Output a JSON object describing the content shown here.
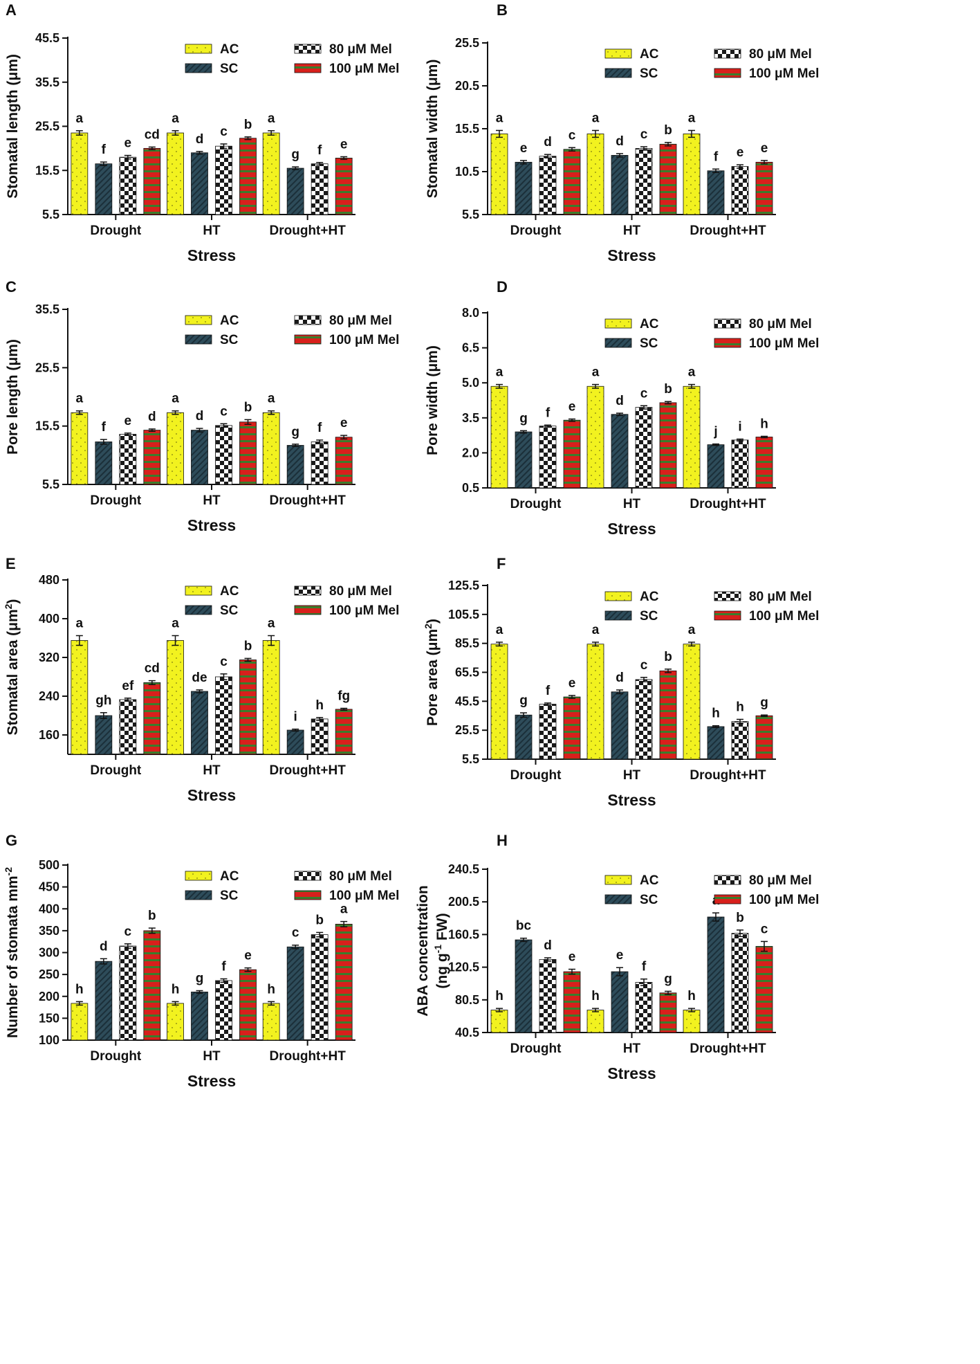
{
  "legend_labels": [
    "AC",
    "SC",
    "80 μM Mel",
    "100 μM Mel"
  ],
  "colors": {
    "ac": "#f2f21f",
    "sc": "#2e4c5a",
    "mel80_light": "#ffffff",
    "mel80_dark": "#1a1a1a",
    "mel100_red": "#d8201c",
    "mel100_green": "#3a7d2c"
  },
  "chart_data": [
    {
      "type": "bar",
      "panel": "A",
      "categories": [
        "Drought",
        "HT",
        "Drought+HT"
      ],
      "xlabel": "Stress",
      "ylabel": "Stomatal length (μm)",
      "ylim": [
        5.5,
        45.5
      ],
      "yticks": [
        5.5,
        15.5,
        25.5,
        35.5,
        45.5
      ],
      "series": [
        {
          "name": "AC",
          "values": [
            24.0,
            24.0,
            24.0
          ],
          "errors": [
            0.5,
            0.5,
            0.5
          ],
          "letters": [
            "a",
            "a",
            "a"
          ]
        },
        {
          "name": "SC",
          "values": [
            17.0,
            19.5,
            16.0
          ],
          "errors": [
            0.4,
            0.3,
            0.3
          ],
          "letters": [
            "f",
            "d",
            "g"
          ]
        },
        {
          "name": "80 μM Mel",
          "values": [
            18.5,
            21.0,
            17.0
          ],
          "errors": [
            0.4,
            0.5,
            0.3
          ],
          "letters": [
            "e",
            "c",
            "f"
          ]
        },
        {
          "name": "100 μM Mel",
          "values": [
            20.5,
            22.8,
            18.3
          ],
          "errors": [
            0.3,
            0.3,
            0.3
          ],
          "letters": [
            "cd",
            "b",
            "e"
          ]
        }
      ]
    },
    {
      "type": "bar",
      "panel": "B",
      "categories": [
        "Drought",
        "HT",
        "Drought+HT"
      ],
      "xlabel": "Stress",
      "ylabel": "Stomatal width (μm)",
      "ylim": [
        5.5,
        25.5
      ],
      "yticks": [
        5.5,
        10.5,
        15.5,
        20.5,
        25.5
      ],
      "series": [
        {
          "name": "AC",
          "values": [
            14.9,
            14.9,
            14.9
          ],
          "errors": [
            0.4,
            0.4,
            0.4
          ],
          "letters": [
            "a",
            "a",
            "a"
          ]
        },
        {
          "name": "SC",
          "values": [
            11.6,
            12.4,
            10.6
          ],
          "errors": [
            0.2,
            0.2,
            0.2
          ],
          "letters": [
            "e",
            "d",
            "f"
          ]
        },
        {
          "name": "80 μM Mel",
          "values": [
            12.3,
            13.2,
            11.1
          ],
          "errors": [
            0.2,
            0.2,
            0.2
          ],
          "letters": [
            "d",
            "c",
            "e"
          ]
        },
        {
          "name": "100 μM Mel",
          "values": [
            13.1,
            13.7,
            11.6
          ],
          "errors": [
            0.2,
            0.2,
            0.2
          ],
          "letters": [
            "c",
            "b",
            "e"
          ]
        }
      ]
    },
    {
      "type": "bar",
      "panel": "C",
      "categories": [
        "Drought",
        "HT",
        "Drought+HT"
      ],
      "xlabel": "Stress",
      "ylabel": "Pore length (μm)",
      "ylim": [
        5.5,
        35.5
      ],
      "yticks": [
        5.5,
        15.5,
        25.5,
        35.5
      ],
      "series": [
        {
          "name": "AC",
          "values": [
            17.8,
            17.8,
            17.8
          ],
          "errors": [
            0.3,
            0.3,
            0.3
          ],
          "letters": [
            "a",
            "a",
            "a"
          ]
        },
        {
          "name": "SC",
          "values": [
            12.8,
            14.8,
            12.2
          ],
          "errors": [
            0.4,
            0.3,
            0.2
          ],
          "letters": [
            "f",
            "d",
            "g"
          ]
        },
        {
          "name": "80 μM Mel",
          "values": [
            14.1,
            15.6,
            12.8
          ],
          "errors": [
            0.2,
            0.3,
            0.3
          ],
          "letters": [
            "e",
            "c",
            "f"
          ]
        },
        {
          "name": "100 μM Mel",
          "values": [
            14.8,
            16.2,
            13.6
          ],
          "errors": [
            0.2,
            0.4,
            0.3
          ],
          "letters": [
            "d",
            "b",
            "e"
          ]
        }
      ]
    },
    {
      "type": "bar",
      "panel": "D",
      "categories": [
        "Drought",
        "HT",
        "Drought+HT"
      ],
      "xlabel": "Stress",
      "ylabel": "Pore width (μm)",
      "ylim": [
        0.5,
        8.0
      ],
      "yticks": [
        0.5,
        2.0,
        3.5,
        5.0,
        6.5,
        8.0
      ],
      "series": [
        {
          "name": "AC",
          "values": [
            4.85,
            4.85,
            4.85
          ],
          "errors": [
            0.08,
            0.08,
            0.08
          ],
          "letters": [
            "a",
            "a",
            "a"
          ]
        },
        {
          "name": "SC",
          "values": [
            2.9,
            3.65,
            2.35
          ],
          "errors": [
            0.05,
            0.05,
            0.03
          ],
          "letters": [
            "g",
            "d",
            "j"
          ]
        },
        {
          "name": "80 μM Mel",
          "values": [
            3.15,
            3.95,
            2.55
          ],
          "errors": [
            0.04,
            0.07,
            0.04
          ],
          "letters": [
            "f",
            "c",
            "i"
          ]
        },
        {
          "name": "100 μM Mel",
          "values": [
            3.4,
            4.15,
            2.68
          ],
          "errors": [
            0.05,
            0.05,
            0.03
          ],
          "letters": [
            "e",
            "b",
            "h"
          ]
        }
      ]
    },
    {
      "type": "bar",
      "panel": "E",
      "categories": [
        "Drought",
        "HT",
        "Drought+HT"
      ],
      "xlabel": "Stress",
      "ylabel": "Stomatal area (μm2)",
      "ylim": [
        120,
        480
      ],
      "yticks": [
        160,
        240,
        320,
        400,
        480
      ],
      "series": [
        {
          "name": "AC",
          "values": [
            355,
            355,
            355
          ],
          "errors": [
            10,
            10,
            10
          ],
          "letters": [
            "a",
            "a",
            "a"
          ]
        },
        {
          "name": "SC",
          "values": [
            200,
            250,
            170
          ],
          "errors": [
            6,
            3,
            2
          ],
          "letters": [
            "gh",
            "de",
            "i"
          ]
        },
        {
          "name": "80 μM Mel",
          "values": [
            233,
            280,
            193
          ],
          "errors": [
            3,
            6,
            3
          ],
          "letters": [
            "ef",
            "c",
            "h"
          ]
        },
        {
          "name": "100 μM Mel",
          "values": [
            268,
            315,
            213
          ],
          "errors": [
            4,
            3,
            2
          ],
          "letters": [
            "cd",
            "b",
            "fg"
          ]
        }
      ]
    },
    {
      "type": "bar",
      "panel": "F",
      "categories": [
        "Drought",
        "HT",
        "Drought+HT"
      ],
      "xlabel": "Stress",
      "ylabel": "Pore area (μm2)",
      "ylim": [
        5.5,
        125.5
      ],
      "yticks": [
        5.5,
        25.5,
        45.5,
        65.5,
        85.5,
        105.5,
        125.5
      ],
      "series": [
        {
          "name": "AC",
          "values": [
            85.0,
            85.0,
            85.0
          ],
          "errors": [
            1.3,
            1.3,
            1.3
          ],
          "letters": [
            "a",
            "a",
            "a"
          ]
        },
        {
          "name": "SC",
          "values": [
            36.0,
            52.0,
            28.0
          ],
          "errors": [
            1.5,
            1.3,
            0.6
          ],
          "letters": [
            "g",
            "d",
            "h"
          ]
        },
        {
          "name": "80 μM Mel",
          "values": [
            43.5,
            60.5,
            31.5
          ],
          "errors": [
            0.8,
            1.5,
            1.5
          ],
          "letters": [
            "f",
            "c",
            "h"
          ]
        },
        {
          "name": "100 μM Mel",
          "values": [
            48.5,
            66.5,
            35.5
          ],
          "errors": [
            1.0,
            1.2,
            0.5
          ],
          "letters": [
            "e",
            "b",
            "g"
          ]
        }
      ]
    },
    {
      "type": "bar",
      "panel": "G",
      "categories": [
        "Drought",
        "HT",
        "Drought+HT"
      ],
      "xlabel": "Stress",
      "ylabel": "Number of stomata mm-2",
      "ylim": [
        100,
        500
      ],
      "yticks": [
        100,
        150,
        200,
        250,
        300,
        350,
        400,
        450,
        500
      ],
      "series": [
        {
          "name": "AC",
          "values": [
            184,
            184,
            184
          ],
          "errors": [
            4,
            4,
            4
          ],
          "letters": [
            "h",
            "h",
            "h"
          ]
        },
        {
          "name": "SC",
          "values": [
            280,
            210,
            313
          ],
          "errors": [
            6,
            3,
            4
          ],
          "letters": [
            "d",
            "g",
            "c"
          ]
        },
        {
          "name": "80 μM Mel",
          "values": [
            315,
            236,
            341
          ],
          "errors": [
            5,
            4,
            5
          ],
          "letters": [
            "c",
            "f",
            "b"
          ]
        },
        {
          "name": "100 μM Mel",
          "values": [
            350,
            261,
            365
          ],
          "errors": [
            6,
            4,
            6
          ],
          "letters": [
            "b",
            "e",
            "a"
          ]
        }
      ]
    },
    {
      "type": "bar",
      "panel": "H",
      "categories": [
        "Drought",
        "HT",
        "Drought+HT"
      ],
      "xlabel": "Stress",
      "ylabel": "ABA concentration (ng g-1 FW)",
      "ylim": [
        40.5,
        240.5
      ],
      "yticks": [
        40.5,
        80.5,
        120.5,
        160.5,
        200.5,
        240.5
      ],
      "series": [
        {
          "name": "AC",
          "values": [
            68,
            68,
            68
          ],
          "errors": [
            2,
            2,
            2
          ],
          "letters": [
            "h",
            "h",
            "h"
          ]
        },
        {
          "name": "SC",
          "values": [
            154,
            115,
            182
          ],
          "errors": [
            2,
            5,
            5
          ],
          "letters": [
            "bc",
            "e",
            "a"
          ]
        },
        {
          "name": "80 μM Mel",
          "values": [
            130,
            102,
            162
          ],
          "errors": [
            2,
            4,
            4
          ],
          "letters": [
            "d",
            "f",
            "b"
          ]
        },
        {
          "name": "100 μM Mel",
          "values": [
            115,
            89,
            146
          ],
          "errors": [
            3,
            2,
            6
          ],
          "letters": [
            "e",
            "g",
            "c"
          ]
        }
      ]
    }
  ]
}
